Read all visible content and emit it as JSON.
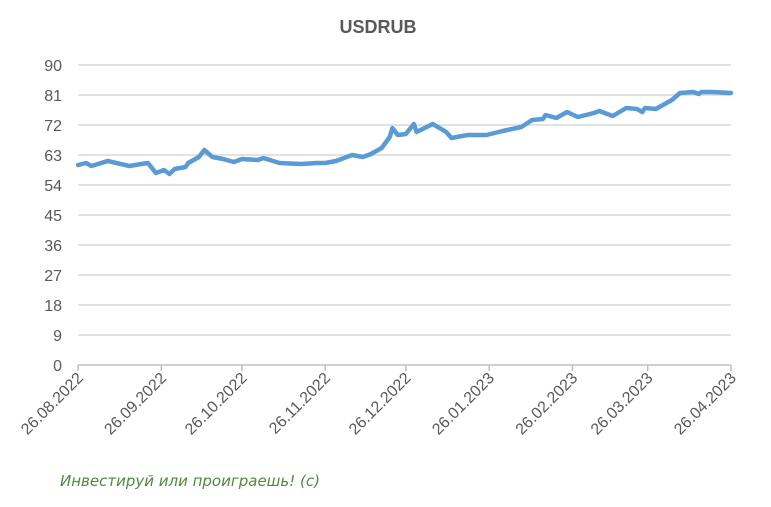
{
  "chart_data": {
    "type": "line",
    "title": "USDRUB",
    "xlabel": "",
    "ylabel": "",
    "x_unit": "days since 26.08.2022",
    "xlim": [
      0,
      243
    ],
    "ylim": [
      0,
      90
    ],
    "y_ticks": [
      0,
      9,
      18,
      27,
      36,
      45,
      54,
      63,
      72,
      81,
      90
    ],
    "x_ticks": [
      {
        "day": 0,
        "label": "26.08.2022"
      },
      {
        "day": 31,
        "label": "26.09.2022"
      },
      {
        "day": 61,
        "label": "26.10.2022"
      },
      {
        "day": 92,
        "label": "26.11.2022"
      },
      {
        "day": 122,
        "label": "26.12.2022"
      },
      {
        "day": 153,
        "label": "26.01.2023"
      },
      {
        "day": 184,
        "label": "26.02.2023"
      },
      {
        "day": 212,
        "label": "26.03.2023"
      },
      {
        "day": 243,
        "label": "26.04.2023"
      }
    ],
    "grid": true,
    "legend": "none",
    "series": [
      {
        "name": "USDRUB",
        "color": "#5b9bd5",
        "x": [
          0,
          3,
          5,
          11,
          19,
          26,
          29,
          32,
          34,
          36,
          40,
          41,
          45,
          47,
          50,
          54,
          58,
          61,
          67,
          69,
          75,
          83,
          89,
          92,
          96,
          99,
          102,
          106,
          109,
          113,
          116,
          117,
          119,
          122,
          125,
          126,
          132,
          137,
          139,
          145,
          152,
          158,
          165,
          169,
          173,
          174,
          178,
          182,
          186,
          192,
          194,
          199,
          204,
          208,
          210,
          211,
          215,
          221,
          224,
          229,
          231,
          232,
          236,
          243
        ],
        "y": [
          60,
          60.6,
          59.7,
          61.2,
          59.7,
          60.6,
          57.6,
          58.5,
          57.3,
          58.8,
          59.4,
          60.6,
          62.4,
          64.5,
          62.4,
          61.8,
          60.9,
          61.8,
          61.5,
          62.1,
          60.6,
          60.3,
          60.6,
          60.6,
          61.2,
          62.1,
          63,
          62.4,
          63.3,
          65.1,
          68.4,
          71.1,
          69,
          69.3,
          72.3,
          69.9,
          72.3,
          69.9,
          68.1,
          69,
          69,
          70.2,
          71.4,
          73.5,
          73.8,
          75,
          74.1,
          75.9,
          74.4,
          75.6,
          76.2,
          74.7,
          77.1,
          76.8,
          75.9,
          77.1,
          76.8,
          79.5,
          81.6,
          81.9,
          81.3,
          81.9,
          81.9,
          81.6
        ]
      }
    ]
  },
  "watermark": "Инвестируй или проиграешь! (с)"
}
